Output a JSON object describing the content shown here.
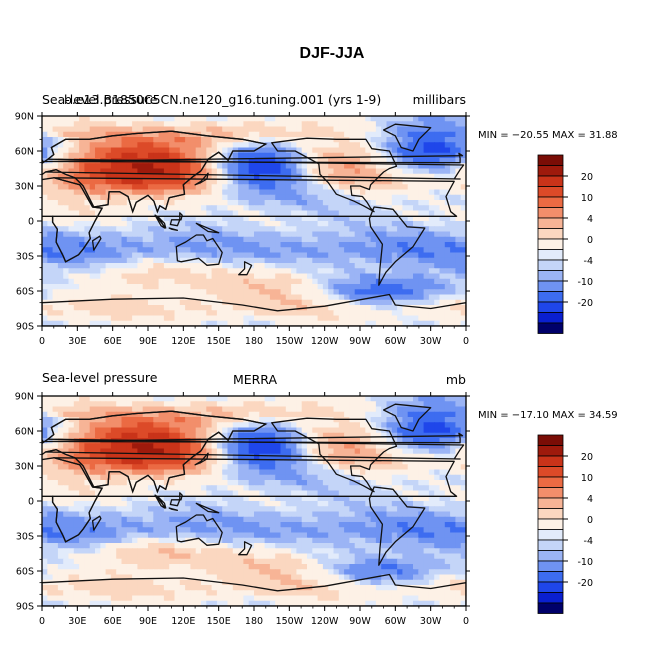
{
  "chart_data": {
    "type": "heatmap",
    "title": "DJF-JJA",
    "colors": {
      "frame": "#000000",
      "land": "#111111",
      "scale": [
        "#00006a",
        "#0a1fd0",
        "#1f46ea",
        "#3d6cf0",
        "#6f93f2",
        "#9bb4f5",
        "#c4d5f8",
        "#e2ebfb",
        "#fdf1e6",
        "#fbd7c0",
        "#f7b496",
        "#f28e6b",
        "#eb6a43",
        "#dc4a28",
        "#c93319",
        "#9e1a0c",
        "#7a0d06"
      ]
    },
    "colorbar": {
      "labels": [
        "20",
        "10",
        "4",
        "-4",
        "-10",
        "-20"
      ],
      "zero_label": "0"
    },
    "x_ticks": [
      "0",
      "30E",
      "60E",
      "90E",
      "120E",
      "150E",
      "180",
      "150W",
      "120W",
      "90W",
      "60W",
      "30W",
      "0"
    ],
    "y_ticks": [
      "90N",
      "60N",
      "30N",
      "0",
      "30S",
      "60S",
      "90S"
    ],
    "xlim": [
      0,
      360
    ],
    "ylim": [
      -90,
      90
    ],
    "panels": [
      {
        "left_text": "Sea-level pressure",
        "overlap_text": "b.e13.B1850C5CN.ne120_g16.tuning.001  (yrs 1-9)",
        "right_text": "millibars",
        "center_text": "",
        "min_label": "MIN = −20.55  MAX =   31.88",
        "min": -20.55,
        "max": 31.88
      },
      {
        "left_text": "Sea-level pressure",
        "overlap_text": "",
        "right_text": "mb",
        "center_text": "MERRA",
        "min_label": "MIN = −17.10  MAX =   34.59",
        "min": -17.1,
        "max": 34.59
      }
    ]
  }
}
